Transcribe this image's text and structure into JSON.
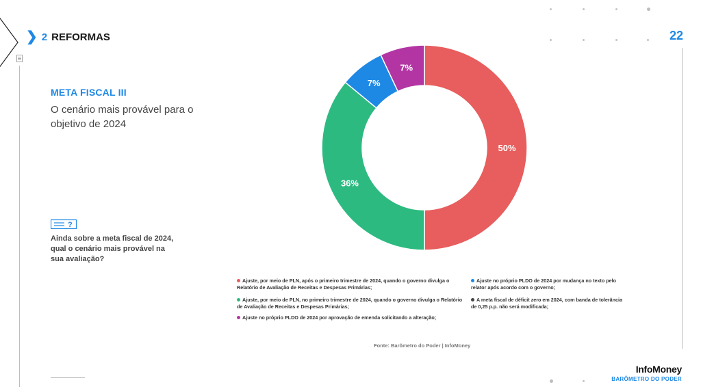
{
  "header": {
    "section_number": "2",
    "section_title": "REFORMAS",
    "page_number": "22"
  },
  "panel": {
    "title": "META FISCAL III",
    "subtitle": "O cenário mais provável para o objetivo de 2024",
    "question": "Ainda sobre a meta fiscal de 2024, qual o cenário mais provável na sua avaliação?"
  },
  "chart_data": {
    "type": "pie",
    "donut": true,
    "categories": [
      "Ajuste, por meio de PLN, após o primeiro trimestre de 2024, quando o governo divulga o Relatório de Avaliação de Receitas e Despesas Primárias;",
      "Ajuste, por meio de PLN, no primeiro trimestre de 2024, quando o governo divulga o Relatório de Avaliação de Receitas e Despesas Primárias;",
      "Ajuste no próprio PLDO de 2024 por aprovação de emenda solicitando a alteração;",
      "Ajuste no próprio PLDO de 2024 por mudança no texto pelo relator após acordo com o governo;",
      "A meta fiscal de déficit zero em 2024, com banda de tolerância de 0,25 p.p. não será modificada;"
    ],
    "values": [
      50,
      36,
      7,
      7,
      0
    ],
    "labels": [
      "50%",
      "36%",
      "7%",
      "7%",
      ""
    ],
    "colors": [
      "#e85d5d",
      "#2dba80",
      "#b335a4",
      "#1e88e5",
      "#444444"
    ],
    "legend_position": "bottom"
  },
  "source": "Fonte: Barômetro do Poder | InfoMoney",
  "brand": {
    "name": "InfoMoney",
    "subtitle": "BARÔMETRO DO PODER"
  }
}
